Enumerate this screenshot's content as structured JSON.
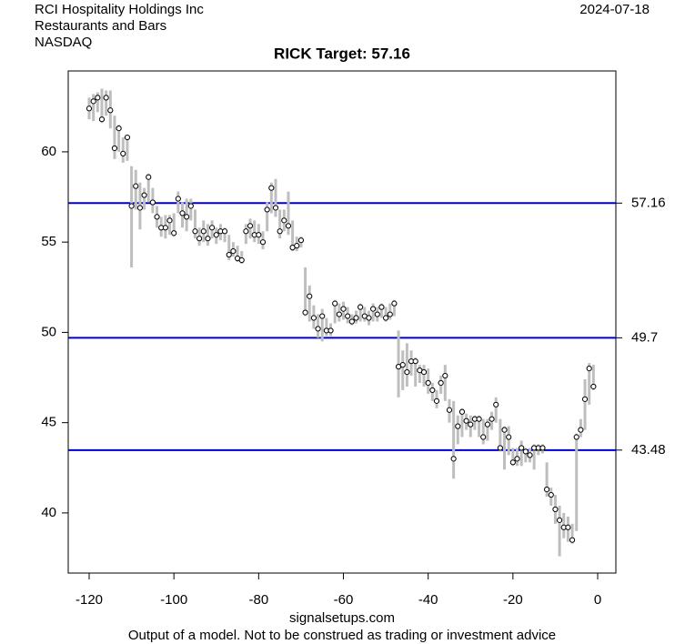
{
  "header": {
    "company": "RCI Hospitality Holdings Inc",
    "industry": "Restaurants and Bars",
    "exchange": "NASDAQ",
    "date": "2024-07-18"
  },
  "footer": {
    "site": "signalsetups.com",
    "disclaimer": "Output of a model. Not to be construed as trading or investment advice"
  },
  "chart_data": {
    "type": "range",
    "title": "RICK Target: 57.16",
    "xlim": [
      -124.94,
      4.29
    ],
    "ylim": [
      36.67,
      64.48
    ],
    "xticks": [
      -120,
      -100,
      -80,
      -60,
      -40,
      -20,
      0
    ],
    "yticks": [
      40,
      45,
      50,
      55,
      60
    ],
    "bar_color": "#bebebe",
    "point_color": "#000000",
    "line_color": "#0000cd",
    "hlines": [
      {
        "value": 57.16,
        "label": "57.16"
      },
      {
        "value": 49.7,
        "label": "49.7"
      },
      {
        "value": 43.48,
        "label": "43.48"
      }
    ],
    "x": [
      -120,
      -119,
      -118,
      -117,
      -116,
      -115,
      -114,
      -113,
      -112,
      -111,
      -110,
      -109,
      -108,
      -107,
      -106,
      -105,
      -104,
      -103,
      -102,
      -101,
      -100,
      -99,
      -98,
      -97,
      -96,
      -95,
      -94,
      -93,
      -92,
      -91,
      -90,
      -89,
      -88,
      -87,
      -86,
      -85,
      -84,
      -83,
      -82,
      -81,
      -80,
      -79,
      -78,
      -77,
      -76,
      -75,
      -74,
      -73,
      -72,
      -71,
      -70,
      -69,
      -68,
      -67,
      -66,
      -65,
      -64,
      -63,
      -62,
      -61,
      -60,
      -59,
      -58,
      -57,
      -56,
      -55,
      -54,
      -53,
      -52,
      -51,
      -50,
      -49,
      -48,
      -47,
      -46,
      -45,
      -44,
      -43,
      -42,
      -41,
      -40,
      -39,
      -38,
      -37,
      -36,
      -35,
      -34,
      -33,
      -32,
      -31,
      -30,
      -29,
      -28,
      -27,
      -26,
      -25,
      -24,
      -23,
      -22,
      -21,
      -20,
      -19,
      -18,
      -17,
      -16,
      -15,
      -14,
      -13,
      -12,
      -11,
      -10,
      -9,
      -8,
      -7,
      -6,
      -5,
      -4,
      -3,
      -2,
      -1
    ],
    "close": [
      62.4,
      62.8,
      63.0,
      61.8,
      63.0,
      62.3,
      60.2,
      61.3,
      59.9,
      60.8,
      57.0,
      58.1,
      56.9,
      57.6,
      58.6,
      57.2,
      56.4,
      55.8,
      55.8,
      56.2,
      55.5,
      57.4,
      56.6,
      56.4,
      57.0,
      55.6,
      55.2,
      55.6,
      55.2,
      55.8,
      55.4,
      55.6,
      55.6,
      54.3,
      54.5,
      54.1,
      54.0,
      55.6,
      55.9,
      55.4,
      55.4,
      55.0,
      56.8,
      58.0,
      56.9,
      55.6,
      56.2,
      55.9,
      54.7,
      54.8,
      55.1,
      51.1,
      52.0,
      50.8,
      50.2,
      50.9,
      50.1,
      50.1,
      51.6,
      51.0,
      51.3,
      50.9,
      50.6,
      50.8,
      51.4,
      50.9,
      50.8,
      51.3,
      51.0,
      51.4,
      50.8,
      51.0,
      51.6,
      48.1,
      48.2,
      47.8,
      48.4,
      48.4,
      47.9,
      47.8,
      47.2,
      46.8,
      46.2,
      47.2,
      47.6,
      45.7,
      43.0,
      44.8,
      45.6,
      45.1,
      44.9,
      45.2,
      45.2,
      44.2,
      44.9,
      45.2,
      46.0,
      43.6,
      44.6,
      44.2,
      42.8,
      43.0,
      43.6,
      43.4,
      43.2,
      43.6,
      43.6,
      43.6,
      41.3,
      41.0,
      40.2,
      39.6,
      39.2,
      39.2,
      38.5,
      44.2,
      44.6,
      46.3,
      48.0,
      47.0
    ],
    "high": [
      63.0,
      63.2,
      63.3,
      63.5,
      63.4,
      63.4,
      62.0,
      61.5,
      60.8,
      60.9,
      59.2,
      59.0,
      58.3,
      58.0,
      58.8,
      58.0,
      57.0,
      56.4,
      56.5,
      56.5,
      56.6,
      57.8,
      57.2,
      57.4,
      57.4,
      56.8,
      55.8,
      56.2,
      56.0,
      56.2,
      55.8,
      56.0,
      55.8,
      55.4,
      55.0,
      54.8,
      54.5,
      56.0,
      56.3,
      56.2,
      56.0,
      55.6,
      57.2,
      58.3,
      58.5,
      56.8,
      56.8,
      57.8,
      56.2,
      55.3,
      55.3,
      53.6,
      52.6,
      51.5,
      51.0,
      51.3,
      50.8,
      50.5,
      51.8,
      51.6,
      51.7,
      51.4,
      51.0,
      51.2,
      51.6,
      51.4,
      51.2,
      51.6,
      51.4,
      51.6,
      51.4,
      51.6,
      51.8,
      50.1,
      49.0,
      49.4,
      49.0,
      48.6,
      48.2,
      48.2,
      48.0,
      47.2,
      46.8,
      47.6,
      48.2,
      46.3,
      46.2,
      45.4,
      45.8,
      45.5,
      45.4,
      45.4,
      45.4,
      45.2,
      45.2,
      45.6,
      46.4,
      45.2,
      44.8,
      44.8,
      43.6,
      43.6,
      44.0,
      43.6,
      43.6,
      43.8,
      43.8,
      43.8,
      42.8,
      41.4,
      41.0,
      40.4,
      40.0,
      39.8,
      39.4,
      44.4,
      45.2,
      47.4,
      48.3,
      48.2
    ],
    "low": [
      61.8,
      61.7,
      62.2,
      61.6,
      62.0,
      61.3,
      59.6,
      60.0,
      59.4,
      59.5,
      53.6,
      56.8,
      55.7,
      56.8,
      57.2,
      56.6,
      55.8,
      55.3,
      55.2,
      55.4,
      55.3,
      56.6,
      55.8,
      55.6,
      56.2,
      55.2,
      54.8,
      55.0,
      54.8,
      55.2,
      54.9,
      55.1,
      55.0,
      54.0,
      54.2,
      53.9,
      53.8,
      54.9,
      55.2,
      55.0,
      54.9,
      54.6,
      55.6,
      56.6,
      56.4,
      55.2,
      55.6,
      55.4,
      54.5,
      54.5,
      54.7,
      50.9,
      50.6,
      50.2,
      49.7,
      49.5,
      49.8,
      49.8,
      50.5,
      50.6,
      50.7,
      50.5,
      50.4,
      50.5,
      50.6,
      50.6,
      50.4,
      50.6,
      50.6,
      50.8,
      50.6,
      50.7,
      50.9,
      46.4,
      46.8,
      47.0,
      47.6,
      47.0,
      47.2,
      47.0,
      46.6,
      46.2,
      45.8,
      46.6,
      46.2,
      45.0,
      41.9,
      43.8,
      44.2,
      44.6,
      44.2,
      44.6,
      44.2,
      43.8,
      44.0,
      44.6,
      45.0,
      43.4,
      42.4,
      43.2,
      42.6,
      42.6,
      42.6,
      42.8,
      42.8,
      42.4,
      43.2,
      43.3,
      40.9,
      40.4,
      39.4,
      37.6,
      38.6,
      38.4,
      38.3,
      39.0,
      44.2,
      44.6,
      46.0,
      46.8
    ]
  }
}
